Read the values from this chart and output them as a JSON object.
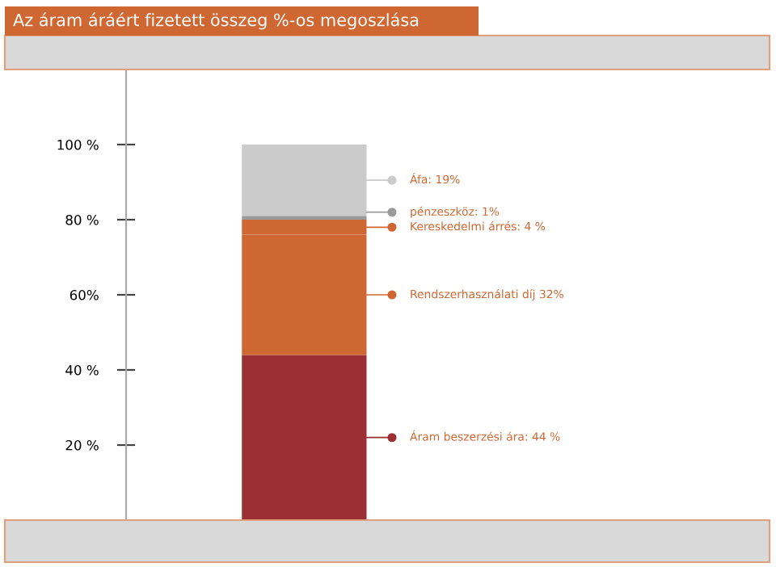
{
  "chart_data": {
    "type": "bar",
    "title": "Az áram áráért fizetett összeg %-os megoszlása",
    "stacked": true,
    "categories": [
      null
    ],
    "series": [
      {
        "name": "Áram beszerzési ára: 44 %",
        "color": "#9b2f33",
        "values": [
          44
        ]
      },
      {
        "name": "Rendszerhasználati díj 32%",
        "color": "#cf6733",
        "values": [
          32
        ]
      },
      {
        "name": "Kereskedelmi árrés: 4 %",
        "color": "#cf6733",
        "values": [
          4
        ]
      },
      {
        "name": "pénzeszköz: 1%",
        "color": "#9a9a9a",
        "values": [
          1
        ]
      },
      {
        "name": "Áfa: 19%",
        "color": "#cbcbcb",
        "values": [
          19
        ]
      }
    ],
    "ylim": [
      0,
      120
    ],
    "yticks": [
      {
        "value": 20,
        "label": "20 %"
      },
      {
        "value": 40,
        "label": "40 %"
      },
      {
        "value": 60,
        "label": "60%"
      },
      {
        "value": 80,
        "label": "80 %"
      },
      {
        "value": 100,
        "label": "100 %"
      }
    ],
    "tick_labels": "y",
    "grid": false,
    "legend": "right"
  }
}
